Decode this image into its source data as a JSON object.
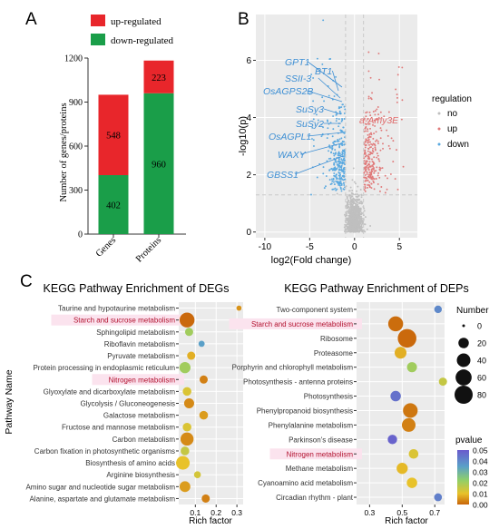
{
  "colors": {
    "up": "#e8262b",
    "down": "#1a9e49",
    "volcano_no": "#bfbfbf",
    "volcano_up": "#e07a7a",
    "volcano_down": "#5aa9e0",
    "label_blue": "#3e8fd4",
    "label_red": "#e06a6a",
    "highlight_text": "#b3122f",
    "grid_bg": "#ebebeb"
  },
  "panels": {
    "A": "A",
    "B": "B",
    "C": "C"
  },
  "chart_data": [
    {
      "id": "A",
      "type": "bar",
      "stacked": true,
      "categories": [
        "Genes",
        "Proteins"
      ],
      "series": [
        {
          "name": "down-regulated",
          "values": [
            402,
            960
          ],
          "labels": [
            "402",
            "960"
          ]
        },
        {
          "name": "up-regulated",
          "values": [
            548,
            223
          ],
          "labels": [
            "548",
            "223"
          ]
        }
      ],
      "legend": [
        "up-regulated",
        "down-regulated"
      ],
      "ylabel": "Number of genes/proteins",
      "ylim": [
        0,
        1200
      ],
      "yticks": [
        "0",
        "300",
        "600",
        "900",
        "1200"
      ]
    },
    {
      "id": "B",
      "type": "scatter",
      "xlabel": "log2(Fold change)",
      "ylabel": "-log10(p)",
      "xlim": [
        -11,
        7
      ],
      "ylim": [
        -0.2,
        7.6
      ],
      "xticks": [
        "-10",
        "-5",
        "0",
        "5"
      ],
      "yticks": [
        "0",
        "2",
        "4",
        "6"
      ],
      "threshold_x": [
        -1,
        1
      ],
      "threshold_y": 1.3,
      "legend": {
        "title": "regulation",
        "items": [
          "no",
          "up",
          "down"
        ]
      },
      "annotations_blue": [
        "GPT1",
        "BT1",
        "SSII-3",
        "OsAGPS2B",
        "SuSy3",
        "SuSy2",
        "OsAGPL1",
        "WAXY",
        "GBSS1"
      ],
      "annotations_red": [
        "a-Amy3E"
      ]
    },
    {
      "id": "C1",
      "type": "scatter",
      "title": "KEGG Pathway Enrichment of DEGs",
      "xlabel": "Rich factor",
      "ylabel": "Pathway Name",
      "xlim": [
        0.02,
        0.33
      ],
      "xticks": [
        "0.1",
        "0.2",
        "0.3"
      ],
      "pathways": [
        "Taurine and hypotaurine metabolism",
        "Starch and sucrose metabolism",
        "Sphingolipid metabolism",
        "Riboflavin metabolism",
        "Pyruvate metabolism",
        "Protein processing in endoplasmic reticulum",
        "Nitrogen metabolism",
        "Glyoxylate and dicarboxylate metabolism",
        "Glycolysis / Gluconeogenesis",
        "Galactose metabolism",
        "Fructose and mannose metabolism",
        "Carbon metabolism",
        "Carbon fixation in photosynthetic organisms",
        "Biosynthesis of amino acids",
        "Arginine biosynthesis",
        "Amino sugar and nucleotide sugar metabolism",
        "Alanine, aspartate and glutamate metabolism"
      ],
      "highlighted": [
        "Starch and sucrose metabolism",
        "Nitrogen metabolism"
      ],
      "rich_factor": [
        0.31,
        0.06,
        0.07,
        0.13,
        0.08,
        0.05,
        0.14,
        0.06,
        0.07,
        0.14,
        0.06,
        0.06,
        0.05,
        0.04,
        0.11,
        0.05,
        0.15
      ],
      "number": [
        2,
        50,
        10,
        4,
        10,
        24,
        10,
        12,
        18,
        12,
        12,
        36,
        12,
        40,
        6,
        22,
        10
      ],
      "pvalue": [
        0.005,
        0.0005,
        0.02,
        0.035,
        0.008,
        0.02,
        0.003,
        0.012,
        0.004,
        0.006,
        0.012,
        0.004,
        0.015,
        0.01,
        0.013,
        0.006,
        0.003
      ]
    },
    {
      "id": "C2",
      "type": "scatter",
      "title": "KEGG Pathway Enrichment of DEPs",
      "xlabel": "Rich factor",
      "ylabel": "",
      "xlim": [
        0.22,
        0.76
      ],
      "xticks": [
        "0.3",
        "0.5",
        "0.7"
      ],
      "pathways": [
        "Two-component system",
        "Starch and sucrose metabolism",
        "Ribosome",
        "Proteasome",
        "Porphyrin and chlorophyll metabolism",
        "Photosynthesis - antenna proteins",
        "Photosynthesis",
        "Phenylpropanoid biosynthesis",
        "Phenylalanine metabolism",
        "Parkinson's disease",
        "Nitrogen metabolism",
        "Methane metabolism",
        "Cyanoamino acid metabolism",
        "Circadian rhythm - plant"
      ],
      "highlighted": [
        "Starch and sucrose metabolism",
        "Nitrogen metabolism"
      ],
      "rich_factor": [
        0.72,
        0.46,
        0.53,
        0.49,
        0.56,
        0.75,
        0.46,
        0.55,
        0.54,
        0.44,
        0.57,
        0.5,
        0.56,
        0.72
      ],
      "number": [
        8,
        50,
        85,
        28,
        18,
        10,
        20,
        48,
        40,
        15,
        16,
        24,
        20,
        9
      ],
      "pvalue": [
        0.04,
        0.001,
        0.0005,
        0.008,
        0.02,
        0.015,
        0.045,
        0.002,
        0.003,
        0.048,
        0.012,
        0.009,
        0.01,
        0.042
      ]
    }
  ],
  "size_legend": {
    "title": "Number",
    "values": [
      "0",
      "20",
      "40",
      "60",
      "80"
    ]
  },
  "pvalue_legend": {
    "title": "pvalue",
    "ticks": [
      "0.05",
      "0.04",
      "0.03",
      "0.02",
      "0.01",
      "0.00"
    ]
  }
}
